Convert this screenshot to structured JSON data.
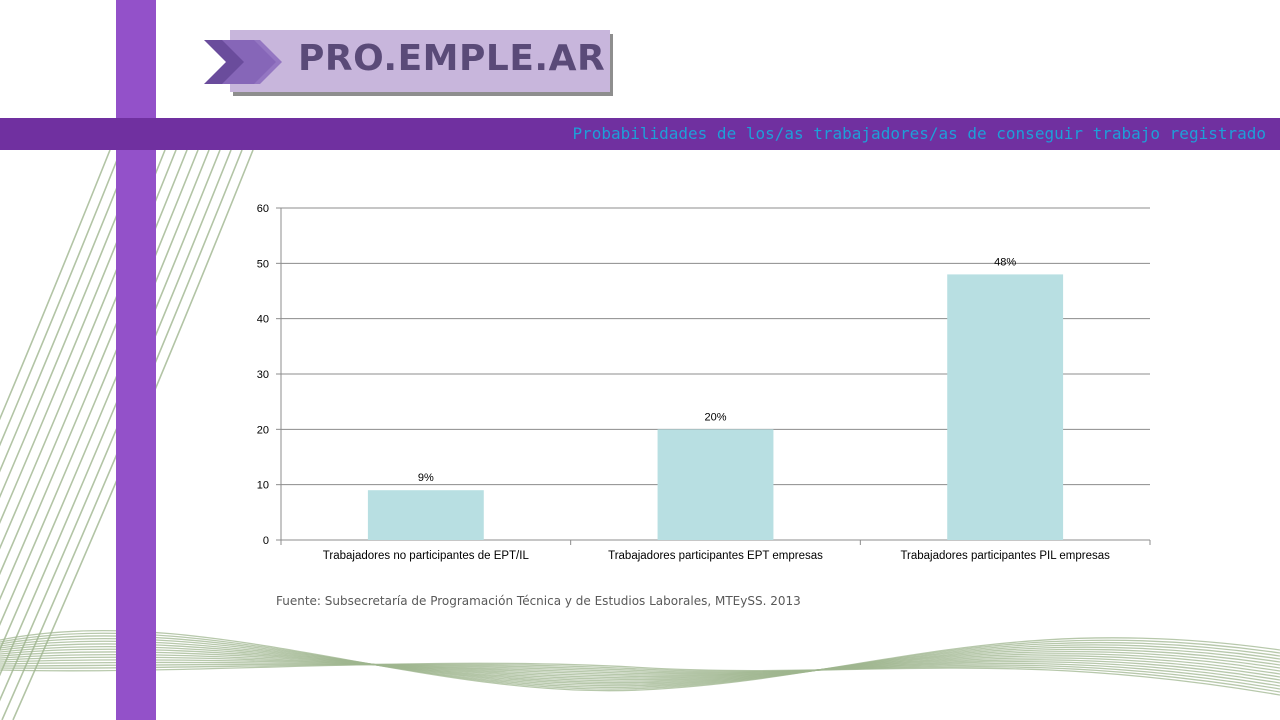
{
  "header": {
    "logo_text": "PRO.EMPLE.AR",
    "title": "Probabilidades de los/as trabajadores/as de conseguir trabajo registrado"
  },
  "colors": {
    "accent_bar": "#9351c9",
    "title_band": "#7030a0",
    "title_text": "#1e9fd8",
    "bar_fill": "#b8dfe2",
    "logo_box": "#c8b6dc",
    "logo_text": "#5a4a78",
    "deco_lines": "#9fb58f"
  },
  "chart_data": {
    "type": "bar",
    "title": "",
    "xlabel": "",
    "ylabel": "",
    "categories": [
      "Trabajadores no participantes de EPT/IL",
      "Trabajadores participantes EPT empresas",
      "Trabajadores participantes PIL empresas"
    ],
    "values": [
      9,
      20,
      48
    ],
    "data_labels": [
      "9%",
      "20%",
      "48%"
    ],
    "ylim": [
      0,
      60
    ],
    "yticks": [
      "0",
      "10",
      "20",
      "30",
      "40",
      "50",
      "60"
    ],
    "grid": true,
    "legend": "none"
  },
  "footer": {
    "source": "Fuente: Subsecretaría de Programación Técnica y de Estudios Laborales, MTEySS. 2013"
  }
}
